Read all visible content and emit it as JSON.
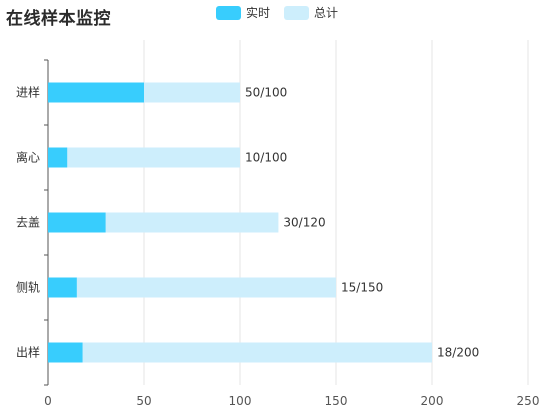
{
  "chart_data": {
    "type": "bar",
    "orientation": "horizontal",
    "title": "在线样本监控",
    "categories": [
      "进样",
      "离心",
      "去盖",
      "侧轨",
      "出样"
    ],
    "series": [
      {
        "name": "实时",
        "values": [
          50,
          10,
          30,
          15,
          18
        ],
        "color": "#38cdfd"
      },
      {
        "name": "总计",
        "values": [
          100,
          100,
          120,
          150,
          200
        ],
        "color": "#cdeefc"
      }
    ],
    "data_labels": [
      "50/100",
      "10/100",
      "30/120",
      "15/150",
      "18/200"
    ],
    "xlim": [
      0,
      250
    ],
    "xticks": [
      0,
      50,
      100,
      150,
      200,
      250
    ],
    "grid": true,
    "legend_position": "top"
  }
}
